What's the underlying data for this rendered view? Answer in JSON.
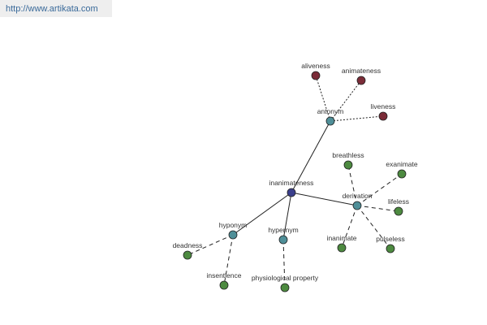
{
  "header": {
    "url": "http://www.artikata.com"
  },
  "nodes": [
    {
      "label": "inanimateness"
    },
    {
      "label": "antonym"
    },
    {
      "label": "aliveness"
    },
    {
      "label": "animateness"
    },
    {
      "label": "liveness"
    },
    {
      "label": "derivation"
    },
    {
      "label": "breathless"
    },
    {
      "label": "exanimate"
    },
    {
      "label": "lifeless"
    },
    {
      "label": "pulseless"
    },
    {
      "label": "inanimate"
    },
    {
      "label": "hyponym"
    },
    {
      "label": "deadness"
    },
    {
      "label": "insentience"
    },
    {
      "label": "hypernym"
    },
    {
      "label": "physiological property"
    }
  ]
}
